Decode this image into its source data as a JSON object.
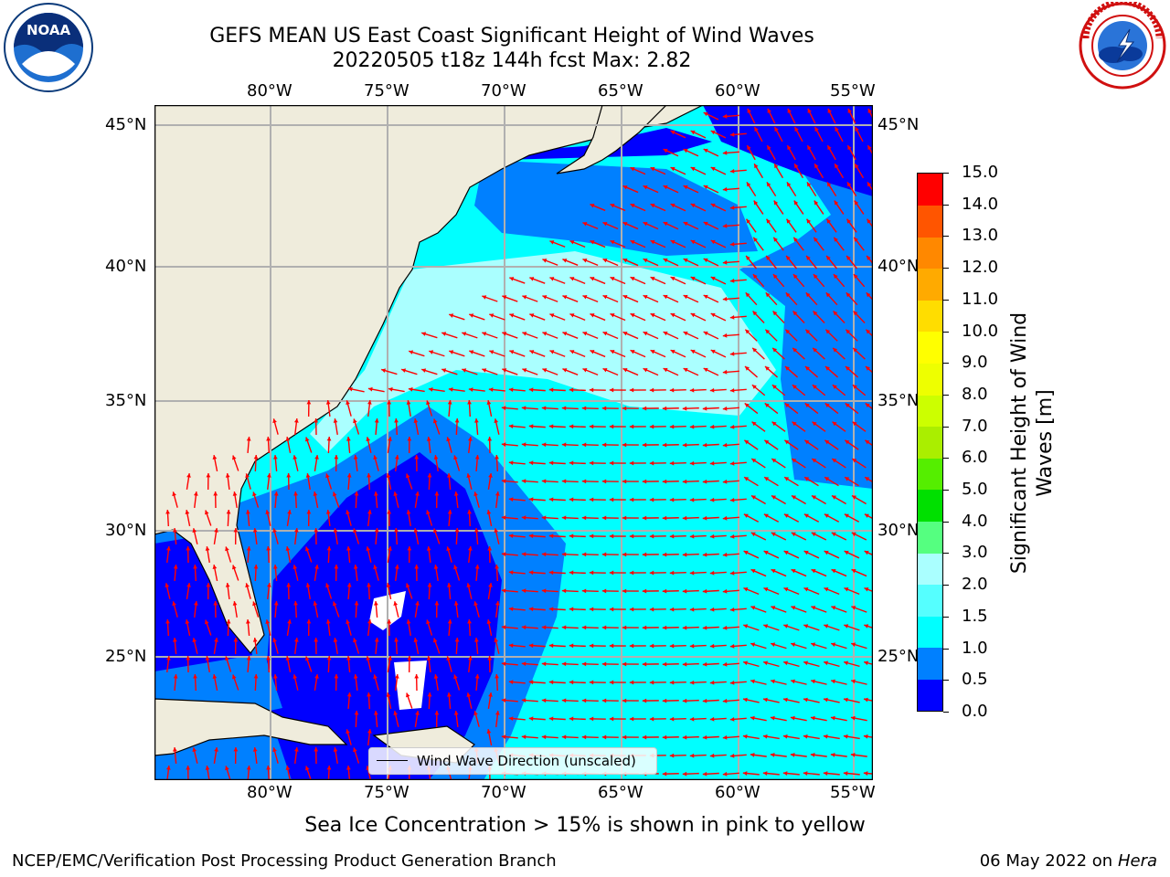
{
  "header": {
    "title_line1": "GEFS MEAN US East Coast Significant Height of Wind Waves",
    "title_line2": "20220505 t18z 144h fcst   Max: 2.82"
  },
  "logos": {
    "left": {
      "icon": "noaa-logo",
      "text": "NOAA"
    },
    "right": {
      "icon": "national-weather-service-logo",
      "text": "NATIONAL WEATHER SERVICE"
    }
  },
  "map": {
    "lon_ticks": [
      "80°W",
      "75°W",
      "70°W",
      "65°W",
      "60°W",
      "55°W"
    ],
    "lat_ticks": [
      "45°N",
      "40°N",
      "35°N",
      "30°N",
      "25°N"
    ],
    "legend_label": "Wind Wave Direction (unscaled)",
    "colors": {
      "land": "#efecdc",
      "arrow": "#ff0000",
      "grid": "#b0b0b0"
    }
  },
  "colorbar": {
    "label": "Significant Height of Wind Waves [m]",
    "ticks": [
      "15.0",
      "14.0",
      "13.0",
      "12.0",
      "11.0",
      "10.0",
      "9.0",
      "8.0",
      "7.0",
      "6.0",
      "5.0",
      "4.0",
      "3.0",
      "2.0",
      "1.5",
      "1.0",
      "0.5",
      "0.0"
    ],
    "colors": [
      "#0000ff",
      "#0080ff",
      "#00ffff",
      "#55ffff",
      "#aaffff",
      "#55ff80",
      "#00e000",
      "#55ee00",
      "#aaee00",
      "#ccff00",
      "#eeff00",
      "#ffff00",
      "#ffdd00",
      "#ffaa00",
      "#ff8800",
      "#ff5500",
      "#ff0000"
    ]
  },
  "footer": {
    "note": "Sea Ice Concentration > 15% is shown in pink to yellow",
    "credit": "NCEP/EMC/Verification Post Processing Product Generation Branch",
    "date": "06 May 2022 on",
    "host": "Hera"
  }
}
